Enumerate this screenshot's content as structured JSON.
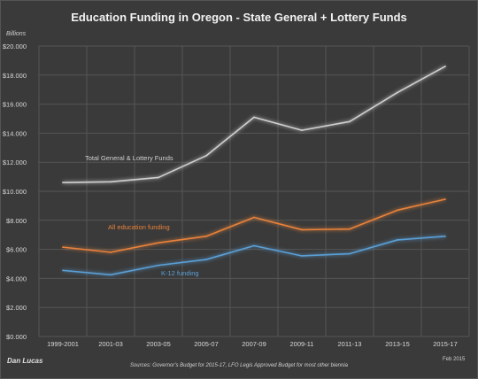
{
  "chart_data": {
    "type": "line",
    "title": "Education Funding in Oregon - State General + Lottery Funds",
    "ylabel": "Billions",
    "xlabel": "",
    "categories": [
      "1999-2001",
      "2001-03",
      "2003-05",
      "2005-07",
      "2007-09",
      "2009-11",
      "2011-13",
      "2013-15",
      "2015-17"
    ],
    "ylim": [
      0,
      20
    ],
    "yticks": [
      "$0.000",
      "$2.000",
      "$4.000",
      "$6.000",
      "$8.000",
      "$10.000",
      "$12.000",
      "$14.000",
      "$16.000",
      "$18.000",
      "$20.000"
    ],
    "grid": true,
    "series": [
      {
        "name": "Total General & Lottery Funds",
        "color": "#d0d0d0",
        "values": [
          10.6,
          10.65,
          10.95,
          12.45,
          15.1,
          14.2,
          14.8,
          16.8,
          18.6
        ]
      },
      {
        "name": "All education funding",
        "color": "#e8823a",
        "values": [
          6.15,
          5.8,
          6.45,
          6.9,
          8.2,
          7.35,
          7.4,
          8.7,
          9.45
        ]
      },
      {
        "name": "K-12 funding",
        "color": "#5a9fd6",
        "values": [
          4.55,
          4.25,
          4.9,
          5.3,
          6.25,
          5.55,
          5.7,
          6.65,
          6.9
        ]
      }
    ]
  },
  "author": "Dan Lucas",
  "source": "Sources: Governor's Budget for 2015-17, LFO Legis Approved Budget for most other biennia",
  "date": "Feb 2015"
}
